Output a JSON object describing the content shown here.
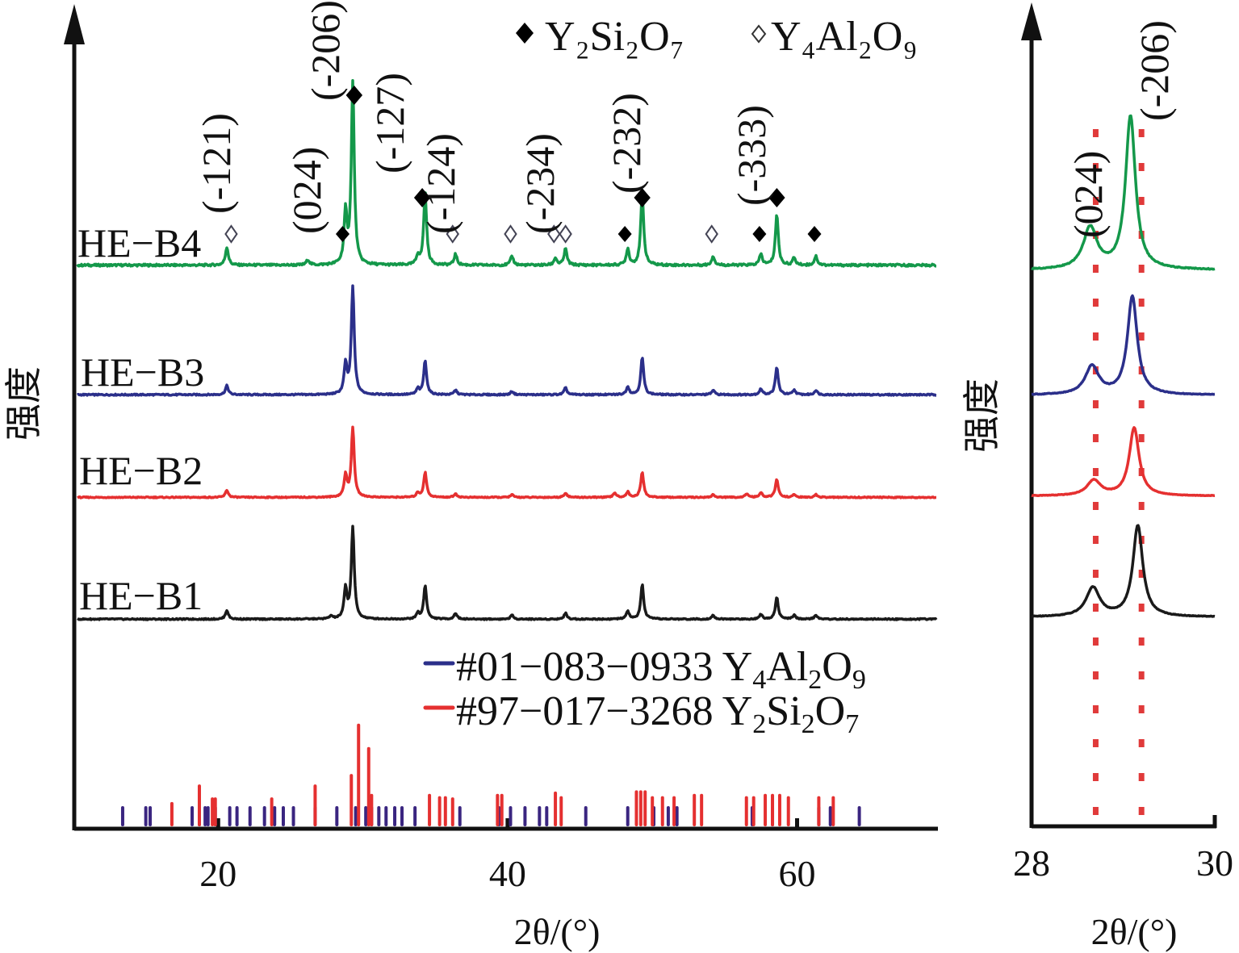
{
  "chart_data": [
    {
      "id": "main",
      "type": "line",
      "title": "",
      "xlabel": "2θ/(°)",
      "ylabel": "强度",
      "xlim": [
        10,
        70
      ],
      "xticks": [
        20,
        40,
        60
      ],
      "xtick_labels": [
        "20",
        "40",
        "60"
      ],
      "grid": false,
      "legend_top": [
        {
          "marker": "filled-diamond",
          "label": "Y",
          "sub": "2",
          "label2": "Si",
          "sub2": "2",
          "label3": "O",
          "sub3": "7",
          "text": "Y2Si2O7"
        },
        {
          "marker": "open-diamond",
          "label": "Y",
          "sub": "4",
          "label2": "Al",
          "sub2": "2",
          "label3": "O",
          "sub3": "9",
          "text": "Y4Al2O9"
        }
      ],
      "legend_reference": [
        {
          "color": "#2b2f8a",
          "text": "#01−083−0933 Y4Al2O9",
          "code": "#01−083−0933 ",
          "f1": "Y",
          "s1": "4",
          "f2": "Al",
          "s2": "2",
          "f3": "O",
          "s3": "9"
        },
        {
          "color": "#e53030",
          "text": "#97−017−3268 Y2Si2O7",
          "code": "#97−017−3268 ",
          "f1": "Y",
          "s1": "2",
          "f2": "Si",
          "s2": "2",
          "f3": "O",
          "s3": "7"
        }
      ],
      "series": [
        {
          "name": "HE-B4",
          "color": "#14984a",
          "offset": 3,
          "peaks": [
            [
              20.6,
              0.1
            ],
            [
              26.2,
              0.03
            ],
            [
              28.8,
              0.28
            ],
            [
              29.3,
              1.0
            ],
            [
              33.8,
              0.05
            ],
            [
              34.3,
              0.4
            ],
            [
              36.4,
              0.06
            ],
            [
              40.3,
              0.05
            ],
            [
              43.3,
              0.04
            ],
            [
              44.0,
              0.09
            ],
            [
              48.3,
              0.09
            ],
            [
              49.3,
              0.4
            ],
            [
              54.2,
              0.05
            ],
            [
              57.5,
              0.06
            ],
            [
              58.6,
              0.28
            ],
            [
              59.8,
              0.04
            ],
            [
              61.3,
              0.05
            ]
          ]
        },
        {
          "name": "HE-B3",
          "color": "#2b2f8a",
          "offset": 2,
          "peaks": [
            [
              20.6,
              0.08
            ],
            [
              28.8,
              0.26
            ],
            [
              29.3,
              0.95
            ],
            [
              33.8,
              0.05
            ],
            [
              34.3,
              0.3
            ],
            [
              36.4,
              0.04
            ],
            [
              40.3,
              0.03
            ],
            [
              44.0,
              0.06
            ],
            [
              48.3,
              0.07
            ],
            [
              49.3,
              0.33
            ],
            [
              54.2,
              0.04
            ],
            [
              57.5,
              0.05
            ],
            [
              58.6,
              0.24
            ],
            [
              59.8,
              0.04
            ],
            [
              61.3,
              0.04
            ]
          ]
        },
        {
          "name": "HE-B2",
          "color": "#e53030",
          "offset": 1,
          "peaks": [
            [
              20.6,
              0.08
            ],
            [
              28.8,
              0.24
            ],
            [
              29.3,
              0.78
            ],
            [
              33.8,
              0.05
            ],
            [
              34.3,
              0.28
            ],
            [
              36.4,
              0.04
            ],
            [
              40.3,
              0.03
            ],
            [
              44.0,
              0.05
            ],
            [
              47.4,
              0.05
            ],
            [
              48.3,
              0.06
            ],
            [
              49.3,
              0.28
            ],
            [
              54.2,
              0.03
            ],
            [
              56.5,
              0.04
            ],
            [
              57.5,
              0.05
            ],
            [
              58.6,
              0.2
            ],
            [
              59.8,
              0.03
            ],
            [
              61.3,
              0.03
            ]
          ]
        },
        {
          "name": "HE-B1",
          "color": "#1a1a1a",
          "offset": 0,
          "peaks": [
            [
              20.6,
              0.09
            ],
            [
              27.8,
              0.03
            ],
            [
              28.8,
              0.3
            ],
            [
              29.3,
              0.93
            ],
            [
              33.8,
              0.06
            ],
            [
              34.3,
              0.34
            ],
            [
              36.4,
              0.06
            ],
            [
              40.3,
              0.04
            ],
            [
              44.0,
              0.06
            ],
            [
              48.3,
              0.08
            ],
            [
              49.3,
              0.35
            ],
            [
              54.2,
              0.04
            ],
            [
              57.5,
              0.05
            ],
            [
              58.6,
              0.22
            ],
            [
              59.8,
              0.04
            ],
            [
              61.3,
              0.04
            ]
          ]
        }
      ],
      "hkl_annotations": [
        {
          "label": "(-121)",
          "x": 20.6
        },
        {
          "label": "(024)",
          "x": 27.0
        },
        {
          "label": "(-206)",
          "x": 29.0
        },
        {
          "label": "(-127)",
          "x": 33.8
        },
        {
          "label": "(-124)",
          "x": 36.0
        },
        {
          "label": "(-234)",
          "x": 43.2
        },
        {
          "label": "(-232)",
          "x": 49.4
        },
        {
          "label": "(-333)",
          "x": 57.5
        }
      ],
      "phase_markers": [
        {
          "phase": "Y4Al2O9",
          "x": 20.9,
          "level": "low"
        },
        {
          "phase": "Y2Si2O7",
          "x": 28.6,
          "level": "low"
        },
        {
          "phase": "Y2Si2O7",
          "x": 29.4,
          "level": "top"
        },
        {
          "phase": "Y2Si2O7",
          "x": 34.1,
          "level": "mid"
        },
        {
          "phase": "Y4Al2O9",
          "x": 36.2,
          "level": "low"
        },
        {
          "phase": "Y4Al2O9",
          "x": 40.2,
          "level": "low"
        },
        {
          "phase": "Y4Al2O9",
          "x": 43.2,
          "level": "low"
        },
        {
          "phase": "Y4Al2O9",
          "x": 44.0,
          "level": "low"
        },
        {
          "phase": "Y2Si2O7",
          "x": 48.1,
          "level": "low"
        },
        {
          "phase": "Y2Si2O7",
          "x": 49.3,
          "level": "mid"
        },
        {
          "phase": "Y4Al2O9",
          "x": 54.1,
          "level": "low"
        },
        {
          "phase": "Y2Si2O7",
          "x": 57.4,
          "level": "low"
        },
        {
          "phase": "Y2Si2O7",
          "x": 58.6,
          "level": "mid"
        },
        {
          "phase": "Y2Si2O7",
          "x": 61.2,
          "level": "low"
        }
      ],
      "reference_sticks": {
        "Y4Al2O9": [
          13.4,
          15.0,
          15.3,
          18.2,
          18.7,
          19.1,
          19.3,
          19.8,
          20.8,
          21.3,
          22.2,
          23.2,
          23.9,
          24.5,
          25.2,
          26.7,
          28.2,
          29.5,
          30.2,
          30.6,
          31.1,
          31.6,
          32.2,
          32.7,
          33.6,
          36.7,
          39.4,
          40.2,
          41.2,
          42.2,
          42.7,
          45.4,
          48.3,
          50.1,
          51.1,
          51.7,
          56.9,
          58.3,
          61.5,
          62.3,
          64.3
        ],
        "Y2Si2O7": [
          [
            16.8,
            0.18
          ],
          [
            18.7,
            0.33
          ],
          [
            19.6,
            0.22
          ],
          [
            19.8,
            0.22
          ],
          [
            23.7,
            0.22
          ],
          [
            26.7,
            0.33
          ],
          [
            29.2,
            0.42
          ],
          [
            29.7,
            0.85
          ],
          [
            30.4,
            0.65
          ],
          [
            30.6,
            0.25
          ],
          [
            34.6,
            0.25
          ],
          [
            35.3,
            0.23
          ],
          [
            35.7,
            0.23
          ],
          [
            36.2,
            0.22
          ],
          [
            39.3,
            0.25
          ],
          [
            39.6,
            0.25
          ],
          [
            43.3,
            0.27
          ],
          [
            43.7,
            0.23
          ],
          [
            48.9,
            0.28
          ],
          [
            49.2,
            0.28
          ],
          [
            49.5,
            0.28
          ],
          [
            50.0,
            0.23
          ],
          [
            50.7,
            0.23
          ],
          [
            51.5,
            0.23
          ],
          [
            52.9,
            0.25
          ],
          [
            53.4,
            0.25
          ],
          [
            56.5,
            0.23
          ],
          [
            57.0,
            0.23
          ],
          [
            57.8,
            0.25
          ],
          [
            58.3,
            0.25
          ],
          [
            58.8,
            0.25
          ],
          [
            59.4,
            0.23
          ],
          [
            61.5,
            0.23
          ],
          [
            62.5,
            0.23
          ]
        ]
      }
    },
    {
      "id": "zoom",
      "type": "line",
      "xlabel": "2θ/(°)",
      "ylabel": "强度",
      "xlim": [
        28,
        30
      ],
      "xticks": [
        28,
        30
      ],
      "xtick_labels": [
        "28",
        "30"
      ],
      "reference_lines_x": [
        28.7,
        29.2
      ],
      "hkl_annotations": [
        {
          "label": "(024)",
          "x": 28.6
        },
        {
          "label": "(-206)",
          "x": 29.2
        }
      ],
      "series": [
        {
          "name": "HE-B4",
          "color": "#14984a",
          "peak024": [
            28.64,
            0.27
          ],
          "peak206": [
            29.08,
            1.0
          ]
        },
        {
          "name": "HE-B3",
          "color": "#2b2f8a",
          "peak024": [
            28.66,
            0.26
          ],
          "peak206": [
            29.1,
            0.9
          ]
        },
        {
          "name": "HE-B2",
          "color": "#e53030",
          "peak024": [
            28.68,
            0.18
          ],
          "peak206": [
            29.12,
            0.8
          ]
        },
        {
          "name": "HE-B1",
          "color": "#1a1a1a",
          "peak024": [
            28.67,
            0.28
          ],
          "peak206": [
            29.16,
            0.88
          ]
        }
      ]
    }
  ],
  "labels": {
    "series_names": [
      "HE−B4",
      "HE−B3",
      "HE−B2",
      "HE−B1"
    ],
    "ylabel": "强度",
    "xlabel_main": "2θ/(°)",
    "xlabel_zoom": "2θ/(°)",
    "legend_y2si2o7": "Y₂Si₂O₇",
    "legend_y4al2o9": "Y₄Al₂O₉"
  }
}
